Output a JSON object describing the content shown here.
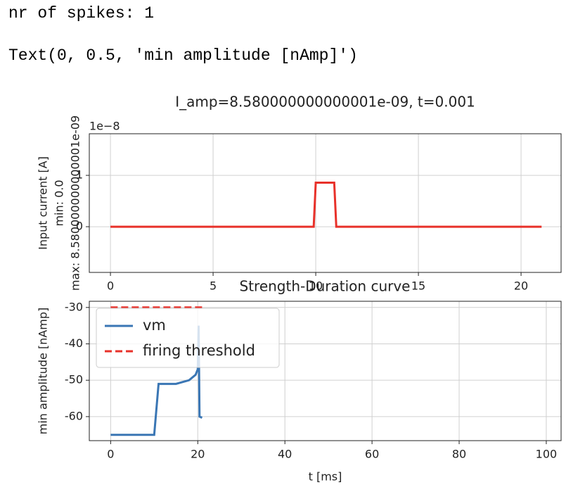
{
  "output_lines": [
    "nr of spikes: 1",
    "Text(0, 0.5, 'min amplitude [nAmp]')"
  ],
  "chart_data": [
    {
      "type": "line",
      "title": "I_amp=8.580000000000001e-09, t=0.001",
      "y_label_lines": [
        "Input current [A]",
        "min: 0.0",
        "max: 8.580000000000001e-09"
      ],
      "y_offset_label": "1e−8",
      "x": [
        0,
        9.9,
        10,
        10.9,
        11,
        21
      ],
      "values": [
        0,
        0,
        0.858,
        0.858,
        0,
        0
      ],
      "color": "#e8312a",
      "xlim": [
        -1.03,
        21.95
      ],
      "ylim": [
        -0.89,
        1.81
      ],
      "xticks": [
        0,
        5,
        10,
        15,
        20
      ],
      "yticks": [
        0,
        1
      ],
      "grid": true
    },
    {
      "type": "line",
      "title": "Strength-Duration curve",
      "x_label": "t [ms]",
      "y_label": "min amplitude [nAmp]",
      "series": [
        {
          "name": "vm",
          "color": "#3a76b4",
          "dash": false,
          "x": [
            0,
            10,
            11,
            15,
            18,
            19.5,
            20,
            20.2,
            20.4,
            21
          ],
          "values": [
            -65,
            -65,
            -51,
            -51,
            -50,
            -48.5,
            -47,
            -35,
            -60,
            -60.3
          ]
        },
        {
          "name": "firing threshold",
          "color": "#e8312a",
          "dash": true,
          "x": [
            0,
            21
          ],
          "values": [
            -30,
            -30
          ]
        }
      ],
      "xlim": [
        -4.9,
        103.4
      ],
      "ylim": [
        -66.6,
        -28.3
      ],
      "xticks": [
        0,
        20,
        40,
        60,
        80,
        100
      ],
      "yticks": [
        -60,
        -50,
        -40,
        -30
      ],
      "grid": true,
      "legend": "upper-left"
    }
  ]
}
